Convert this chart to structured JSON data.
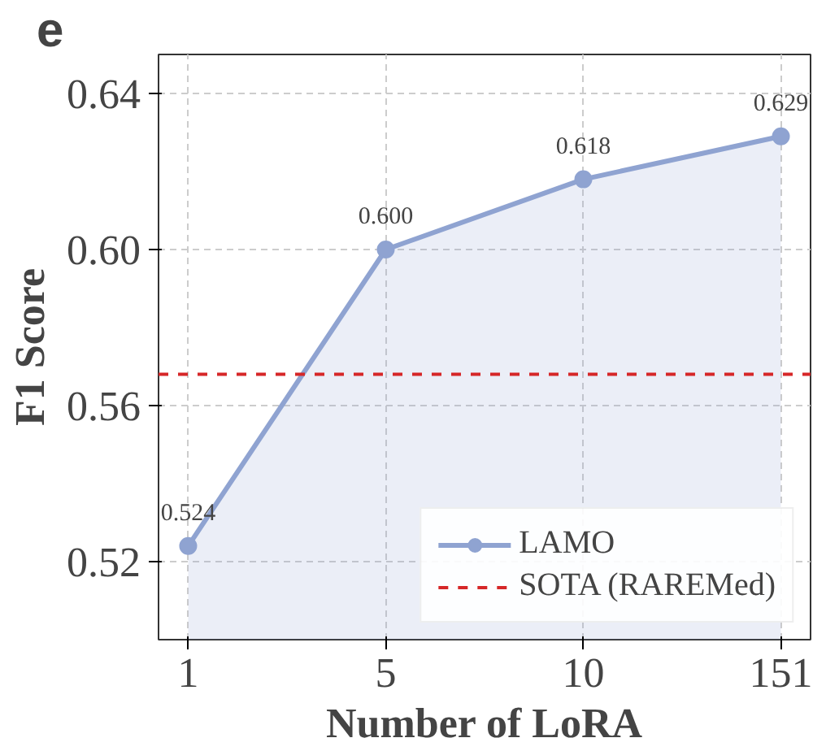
{
  "chart_data": {
    "type": "area",
    "title": "e",
    "xlabel": "Number of LoRA",
    "ylabel": "F1 Score",
    "categories": [
      "1",
      "5",
      "10",
      "151"
    ],
    "series": [
      {
        "name": "LAMO",
        "color": "#8fa3d1",
        "values": [
          0.524,
          0.6,
          0.618,
          0.629
        ]
      }
    ],
    "value_labels": [
      "0.524",
      "0.600",
      "0.618",
      "0.629"
    ],
    "ylim": [
      0.5,
      0.65
    ],
    "yticks": [
      {
        "value": 0.52,
        "label": "0.52"
      },
      {
        "value": 0.56,
        "label": "0.56"
      },
      {
        "value": 0.6,
        "label": "0.60"
      },
      {
        "value": 0.64,
        "label": "0.64"
      }
    ],
    "ref_lines": [
      {
        "axis": "y",
        "value": 0.568,
        "label": "SOTA (RAREMed)",
        "color": "#d62728",
        "line_style": "dashed"
      }
    ],
    "grid": true,
    "legend": "bottom right",
    "marker": "circle",
    "line_style": "solid"
  }
}
